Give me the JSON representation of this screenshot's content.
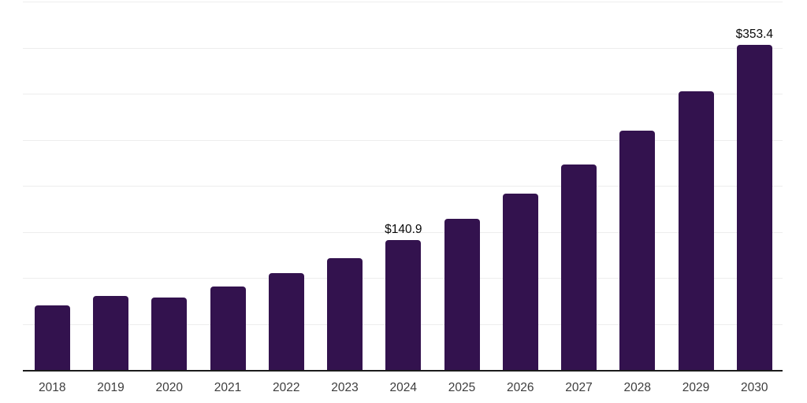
{
  "colors": {
    "bar": "#33124E",
    "axis": "#1c1c1c",
    "gridline": "#ededed",
    "value_label": "#0a0a0a",
    "tick_label": "#3d3d3d",
    "background": "#ffffff"
  },
  "chart_data": {
    "type": "bar",
    "categories": [
      "2018",
      "2019",
      "2020",
      "2021",
      "2022",
      "2023",
      "2024",
      "2025",
      "2026",
      "2027",
      "2028",
      "2029",
      "2030"
    ],
    "values": [
      70.5,
      80.2,
      78.6,
      90.6,
      105.0,
      121.3,
      140.9,
      164.2,
      191.4,
      223.1,
      260.0,
      303.0,
      353.4
    ],
    "data_labels": {
      "2024": "$140.9",
      "2030": "$353.4"
    },
    "ylim": [
      0,
      400
    ],
    "gridline_step": 50,
    "grid": "horizontal-only",
    "y_tick_labels_visible": false,
    "legend_position": "none",
    "bar_corner_radius_px": 4
  }
}
